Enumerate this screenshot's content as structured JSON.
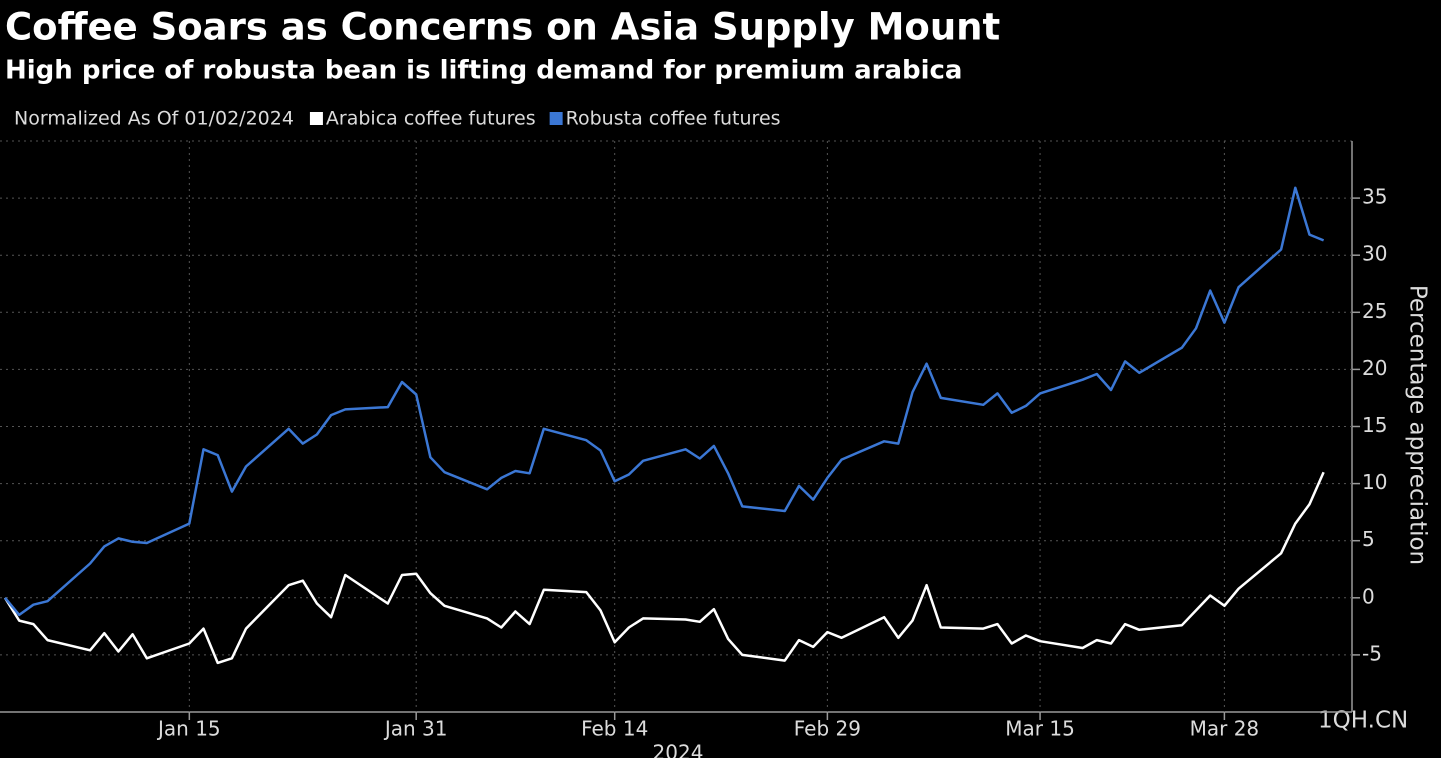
{
  "chart_data": {
    "type": "line",
    "title": "Coffee Soars as Concerns on Asia Supply Mount",
    "subtitle": "High price of robusta bean is lifting demand for premium arabica",
    "legend_title": "Normalized As Of 01/02/2024",
    "y_label": "Percentage appreciation",
    "x_label": "2024",
    "annotation": "1QH.CN",
    "x": [
      "2024-01-02",
      "2024-01-03",
      "2024-01-04",
      "2024-01-05",
      "2024-01-08",
      "2024-01-09",
      "2024-01-10",
      "2024-01-11",
      "2024-01-12",
      "2024-01-15",
      "2024-01-16",
      "2024-01-17",
      "2024-01-18",
      "2024-01-19",
      "2024-01-22",
      "2024-01-23",
      "2024-01-24",
      "2024-01-25",
      "2024-01-26",
      "2024-01-29",
      "2024-01-30",
      "2024-01-31",
      "2024-02-01",
      "2024-02-02",
      "2024-02-05",
      "2024-02-06",
      "2024-02-07",
      "2024-02-08",
      "2024-02-09",
      "2024-02-12",
      "2024-02-13",
      "2024-02-14",
      "2024-02-15",
      "2024-02-16",
      "2024-02-19",
      "2024-02-20",
      "2024-02-21",
      "2024-02-22",
      "2024-02-23",
      "2024-02-26",
      "2024-02-27",
      "2024-02-28",
      "2024-02-29",
      "2024-03-01",
      "2024-03-04",
      "2024-03-05",
      "2024-03-06",
      "2024-03-07",
      "2024-03-08",
      "2024-03-11",
      "2024-03-12",
      "2024-03-13",
      "2024-03-14",
      "2024-03-15",
      "2024-03-18",
      "2024-03-19",
      "2024-03-20",
      "2024-03-21",
      "2024-03-22",
      "2024-03-25",
      "2024-03-26",
      "2024-03-27",
      "2024-03-28",
      "2024-03-29",
      "2024-04-01",
      "2024-04-02",
      "2024-04-03",
      "2024-04-04"
    ],
    "series": [
      {
        "name": "Arabica coffee futures",
        "color": "#ffffff",
        "values": [
          0,
          -2,
          -2.3,
          -3.7,
          -4.6,
          -3.1,
          -4.7,
          -3.2,
          -5.3,
          -4,
          -2.7,
          -5.7,
          -5.3,
          -2.7,
          1.1,
          1.5,
          -0.5,
          -1.7,
          2,
          -0.5,
          2,
          2.1,
          0.4,
          -0.7,
          -1.8,
          -2.6,
          -1.2,
          -2.3,
          0.7,
          0.5,
          -1.1,
          -3.9,
          -2.6,
          -1.8,
          -1.9,
          -2.1,
          -1,
          -3.6,
          -5,
          -5.5,
          -3.7,
          -4.3,
          -3,
          -3.5,
          -1.7,
          -3.5,
          -2,
          1.1,
          -2.6,
          -2.7,
          -2.3,
          -4,
          -3.3,
          -3.8,
          -4.4,
          -3.7,
          -4,
          -2.3,
          -2.8,
          -2.4,
          -1.1,
          0.2,
          -0.7,
          0.8,
          3.9,
          6.5,
          8.2,
          11
        ]
      },
      {
        "name": "Robusta coffee futures",
        "color": "#3b77d4",
        "values": [
          0,
          -1.5,
          -0.6,
          -0.3,
          3,
          4.5,
          5.2,
          4.9,
          4.8,
          6.5,
          13,
          12.5,
          9.3,
          11.5,
          14.8,
          13.5,
          14.3,
          16,
          16.5,
          16.7,
          18.9,
          17.8,
          12.3,
          11,
          9.5,
          10.5,
          11.1,
          10.9,
          14.8,
          13.8,
          12.9,
          10.2,
          10.8,
          12,
          13,
          12.2,
          13.3,
          10.9,
          8,
          7.6,
          9.8,
          8.6,
          10.5,
          12.1,
          13.7,
          13.5,
          18,
          20.5,
          17.5,
          16.9,
          17.9,
          16.2,
          16.8,
          17.9,
          19.1,
          19.6,
          18.2,
          20.7,
          19.7,
          21.9,
          23.6,
          26.9,
          24.1,
          27.2,
          30.5,
          35.9,
          31.8,
          31.3
        ]
      }
    ],
    "xlim": [
      "2024-01-02",
      "2024-04-06"
    ],
    "xticks": [
      {
        "value": "2024-01-15",
        "label": "Jan 15"
      },
      {
        "value": "2024-01-31",
        "label": "Jan 31"
      },
      {
        "value": "2024-02-14",
        "label": "Feb 14"
      },
      {
        "value": "2024-02-29",
        "label": "Feb 29"
      },
      {
        "value": "2024-03-15",
        "label": "Mar 15"
      },
      {
        "value": "2024-03-28",
        "label": "Mar 28"
      }
    ],
    "ylim": [
      -10,
      40
    ],
    "yticks": [
      -5,
      0,
      5,
      10,
      15,
      20,
      25,
      30,
      35
    ],
    "grid": true,
    "legend": "top-left"
  }
}
